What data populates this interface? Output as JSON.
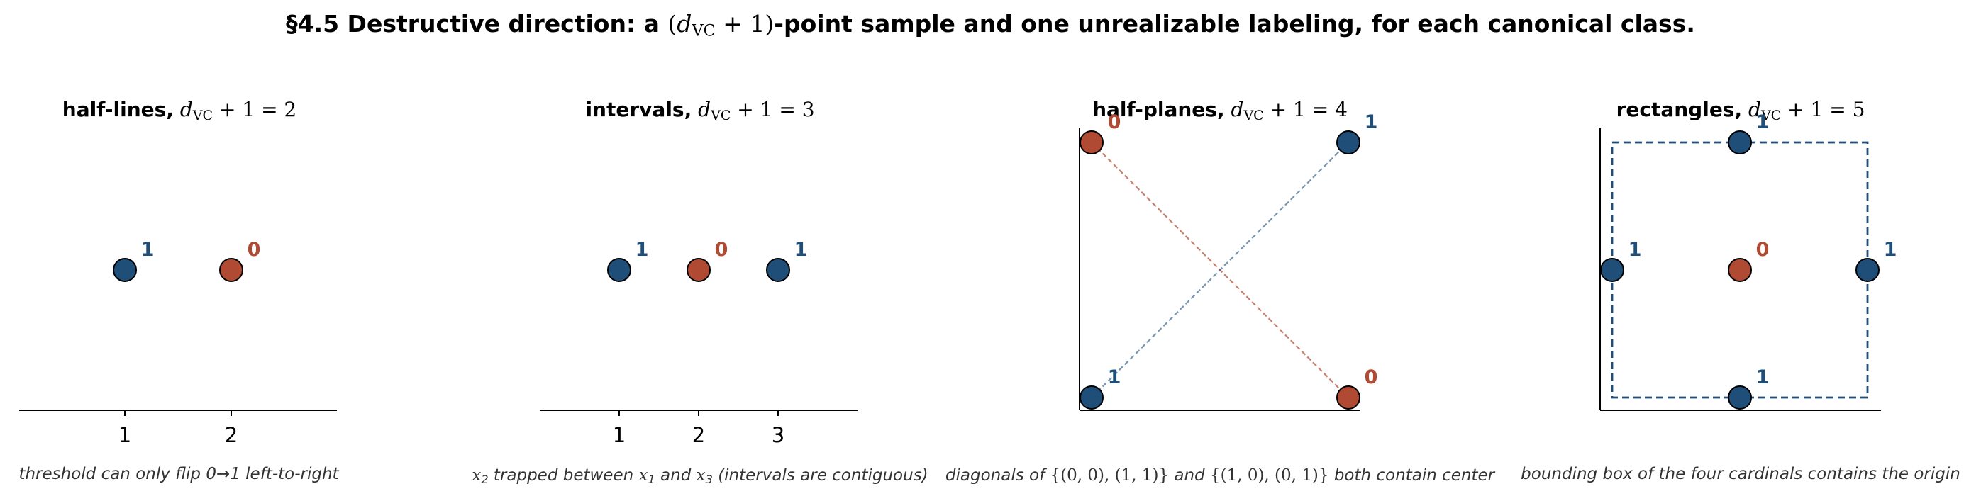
{
  "header": {
    "title_prefix": "§4.5  Destructive direction: a ",
    "title_math_open": "(",
    "title_math_d": "d",
    "title_math_sub": "VC",
    "title_math_rest": " + 1)",
    "title_suffix": "-point sample and one unrealizable labeling, for each canonical class."
  },
  "colors": {
    "label_one": "#1f4e79",
    "label_zero": "#b04a32",
    "point_edge": "#000000"
  },
  "panels": [
    {
      "name": "half-lines",
      "title_bold": "half-lines,",
      "title_math": "d",
      "title_sub": "VC",
      "title_eq": " + 1 = 2",
      "caption": "threshold can only flip 0→1 left-to-right",
      "ticks": [
        "1",
        "2"
      ],
      "points": [
        {
          "x": 1,
          "y": 0,
          "label": "1"
        },
        {
          "x": 2,
          "y": 0,
          "label": "0"
        }
      ]
    },
    {
      "name": "intervals",
      "title_bold": "intervals,",
      "title_math": "d",
      "title_sub": "VC",
      "title_eq": " + 1 = 3",
      "caption_a": "x",
      "caption_a_sub": "2",
      "caption_b": " trapped between ",
      "caption_c": "x",
      "caption_c_sub": "1",
      "caption_d": " and ",
      "caption_e": "x",
      "caption_e_sub": "3",
      "caption_f": " (intervals are contiguous)",
      "ticks": [
        "1",
        "2",
        "3"
      ],
      "points": [
        {
          "x": 1,
          "y": 0,
          "label": "1"
        },
        {
          "x": 2,
          "y": 0,
          "label": "0"
        },
        {
          "x": 3,
          "y": 0,
          "label": "1"
        }
      ]
    },
    {
      "name": "half-planes",
      "title_bold": "half-planes,",
      "title_math": "d",
      "title_sub": "VC",
      "title_eq": " + 1 = 4",
      "caption_a": "diagonals of ",
      "caption_b": "{(0, 0), (1, 1)}",
      "caption_c": " and ",
      "caption_d": "{(1, 0), (0, 1)}",
      "caption_e": " both contain center",
      "points": [
        {
          "x": 0,
          "y": 1,
          "label": "0"
        },
        {
          "x": 1,
          "y": 1,
          "label": "1"
        },
        {
          "x": 0,
          "y": 0,
          "label": "1"
        },
        {
          "x": 1,
          "y": 0,
          "label": "0"
        }
      ]
    },
    {
      "name": "rectangles",
      "title_bold": "rectangles,",
      "title_math": "d",
      "title_sub": "VC",
      "title_eq": " + 1 = 5",
      "caption": "bounding box of the four cardinals contains the origin",
      "points": [
        {
          "x": 0,
          "y": 1,
          "label": "1"
        },
        {
          "x": -1,
          "y": 0,
          "label": "1"
        },
        {
          "x": 0,
          "y": 0,
          "label": "0"
        },
        {
          "x": 1,
          "y": 0,
          "label": "1"
        },
        {
          "x": 0,
          "y": -1,
          "label": "1"
        }
      ]
    }
  ]
}
